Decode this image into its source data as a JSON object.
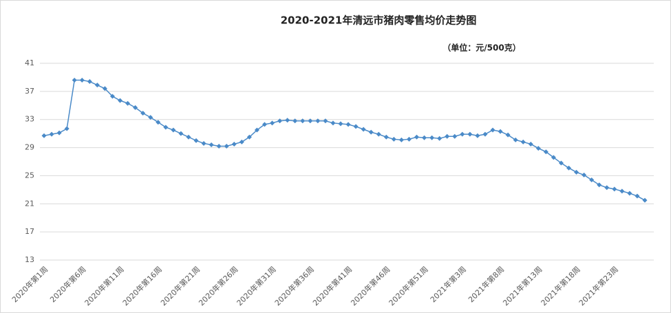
{
  "chart_data": {
    "type": "line",
    "title": "2020-2021年清远市猪肉零售均价走势图",
    "subtitle": "（单位：元/500克）",
    "categories": [
      "2020年第1周",
      null,
      null,
      null,
      null,
      "2020年第6周",
      null,
      null,
      null,
      null,
      "2020年第11周",
      null,
      null,
      null,
      null,
      "2020年第16周",
      null,
      null,
      null,
      null,
      "2020年第21周",
      null,
      null,
      null,
      null,
      "2020年第26周",
      null,
      null,
      null,
      null,
      "2020年第31周",
      null,
      null,
      null,
      null,
      "2020年第36周",
      null,
      null,
      null,
      null,
      "2020年第41周",
      null,
      null,
      null,
      null,
      "2020年第46周",
      null,
      null,
      null,
      null,
      "2020年第51周",
      null,
      null,
      null,
      null,
      "2021年第3周",
      null,
      null,
      null,
      null,
      "2021年第8周",
      null,
      null,
      null,
      null,
      "2021年第13周",
      null,
      null,
      null,
      null,
      "2021年第18周",
      null,
      null,
      null,
      null,
      "2021年第23周",
      null,
      null,
      null,
      null
    ],
    "values": [
      30.7,
      30.9,
      31.1,
      31.7,
      38.6,
      38.6,
      38.4,
      37.9,
      37.4,
      36.3,
      35.7,
      35.3,
      34.7,
      33.9,
      33.3,
      32.6,
      31.9,
      31.5,
      31.0,
      30.5,
      30.0,
      29.6,
      29.4,
      29.2,
      29.2,
      29.5,
      29.8,
      30.5,
      31.5,
      32.3,
      32.5,
      32.8,
      32.9,
      32.8,
      32.8,
      32.8,
      32.8,
      32.8,
      32.5,
      32.4,
      32.3,
      32.0,
      31.6,
      31.2,
      30.9,
      30.5,
      30.2,
      30.1,
      30.2,
      30.5,
      30.4,
      30.4,
      30.3,
      30.6,
      30.6,
      30.9,
      30.9,
      30.7,
      30.9,
      31.5,
      31.3,
      30.8,
      30.1,
      29.8,
      29.5,
      28.9,
      28.4,
      27.6,
      26.8,
      26.1,
      25.5,
      25.1,
      24.4,
      23.7,
      23.3,
      23.1,
      22.8,
      22.5,
      22.1,
      21.5
    ],
    "color": "#4a8ac8",
    "ylim": [
      13,
      41
    ],
    "yticks": [
      13,
      17,
      21,
      25,
      29,
      33,
      37,
      41
    ],
    "grid": true
  }
}
